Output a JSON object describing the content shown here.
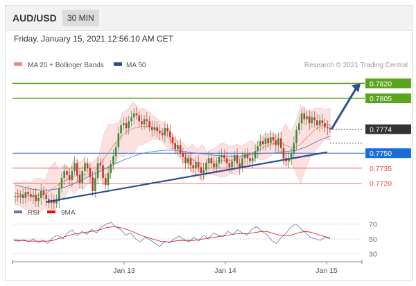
{
  "header": {
    "symbol": "AUD/USD",
    "timeframe": "30 MIN"
  },
  "datetime": "Friday, January 15, 2021 12:56:10 AM CET",
  "legend": {
    "ma20_label": "MA 20 + Bollinger Bands",
    "ma50_label": "MA 50",
    "rsi_label": "RSI",
    "ma9_label": "9MA"
  },
  "credit": "Research © 2021 Trading Central",
  "colors": {
    "resistance": "#5aa51e",
    "current": "#333333",
    "pivot": "#1a6ed8",
    "support": "#e34a4a",
    "trend": "#2d4f8e",
    "bollinger_fill": "#fde1e1",
    "ma20": "#f08888",
    "ma50": "#5b7bb5",
    "candle_up": "#3c8c3c",
    "candle_down": "#c0392b"
  },
  "chart_data": [
    {
      "type": "line",
      "title": "",
      "x_labels": [
        "Jan 13",
        "Jan 14",
        "Jan 15"
      ],
      "ylim": [
        0.7705,
        0.783
      ],
      "levels": [
        {
          "value": 0.782,
          "label": "0.7820",
          "role": "resistance"
        },
        {
          "value": 0.7805,
          "label": "0.7805",
          "role": "resistance"
        },
        {
          "value": 0.7774,
          "label": "0.7774",
          "role": "current"
        },
        {
          "value": 0.775,
          "label": "0.7750",
          "role": "pivot"
        },
        {
          "value": 0.7735,
          "label": "0.7735",
          "role": "support"
        },
        {
          "value": 0.772,
          "label": "0.7720",
          "role": "support"
        }
      ],
      "series": [
        {
          "name": "Price",
          "values": [
            0.7707,
            0.7706,
            0.7708,
            0.7705,
            0.7711,
            0.7709,
            0.7706,
            0.7708,
            0.7702,
            0.7705,
            0.7712,
            0.7708,
            0.7704,
            0.77,
            0.7703,
            0.77,
            0.7702,
            0.7715,
            0.7725,
            0.7732,
            0.7728,
            0.7723,
            0.7732,
            0.774,
            0.7728,
            0.772,
            0.7732,
            0.774,
            0.7735,
            0.7726,
            0.7712,
            0.7725,
            0.774,
            0.7738,
            0.7725,
            0.7718,
            0.773,
            0.7739,
            0.7747,
            0.7756,
            0.777,
            0.7778,
            0.778,
            0.7775,
            0.7782,
            0.7786,
            0.779,
            0.7788,
            0.7782,
            0.7779,
            0.7784,
            0.7782,
            0.7776,
            0.7773,
            0.7776,
            0.7772,
            0.777,
            0.7768,
            0.7775,
            0.7772,
            0.7766,
            0.776,
            0.7754,
            0.7758,
            0.775,
            0.7746,
            0.774,
            0.7745,
            0.7738,
            0.7735,
            0.7741,
            0.7736,
            0.773,
            0.7733,
            0.774,
            0.7745,
            0.774,
            0.7736,
            0.774,
            0.7746,
            0.7748,
            0.7745,
            0.774,
            0.7736,
            0.7742,
            0.7748,
            0.774,
            0.7735,
            0.7745,
            0.7749,
            0.7745,
            0.7742,
            0.7745,
            0.7752,
            0.7757,
            0.7762,
            0.7759,
            0.7765,
            0.776,
            0.7766,
            0.7763,
            0.7758,
            0.7765,
            0.7755,
            0.7745,
            0.7742,
            0.7744,
            0.775,
            0.776,
            0.7773,
            0.778,
            0.779,
            0.7784,
            0.7787,
            0.778,
            0.7786,
            0.7783,
            0.7778,
            0.7783,
            0.778,
            0.7776,
            0.7775,
            0.7774
          ]
        },
        {
          "name": "MA 20",
          "values": [
            0.771,
            0.7709,
            0.7708,
            0.7707,
            0.7707,
            0.7708,
            0.7709,
            0.7712,
            0.7716,
            0.7719,
            0.7722,
            0.7725,
            0.7727,
            0.7728,
            0.7729,
            0.7729,
            0.7731,
            0.7737,
            0.7744,
            0.7751,
            0.7758,
            0.7764,
            0.7769,
            0.7773,
            0.7775,
            0.7776,
            0.7777,
            0.7777,
            0.7776,
            0.7774,
            0.7771,
            0.7766,
            0.7761,
            0.7756,
            0.7751,
            0.7747,
            0.7744,
            0.7741,
            0.774,
            0.774,
            0.7741,
            0.7742,
            0.7743,
            0.7743,
            0.7743,
            0.7744,
            0.7746,
            0.7748,
            0.775,
            0.7752,
            0.7755,
            0.7757,
            0.7759,
            0.776,
            0.776,
            0.7758,
            0.7756,
            0.7756,
            0.7759,
            0.7764,
            0.7769,
            0.7774,
            0.7777,
            0.7779,
            0.7779
          ]
        },
        {
          "name": "MA 50",
          "values": [
            0.7718,
            0.7716,
            0.7714,
            0.7713,
            0.7713,
            0.7714,
            0.7716,
            0.7719,
            0.7723,
            0.7727,
            0.7731,
            0.7735,
            0.7739,
            0.7743,
            0.7746,
            0.7749,
            0.7751,
            0.7752,
            0.7753,
            0.7753,
            0.7752,
            0.7751,
            0.775,
            0.7749,
            0.7748,
            0.7747,
            0.7747,
            0.7747,
            0.7748,
            0.7749,
            0.775,
            0.775,
            0.7751,
            0.7752,
            0.7753,
            0.7756,
            0.776,
            0.7764,
            0.7767
          ]
        }
      ],
      "trendline": {
        "from": 0.7701,
        "to": 0.7751
      },
      "projection": {
        "from": 0.7774,
        "to": 0.782
      }
    },
    {
      "type": "line",
      "title": "",
      "y_ticks": [
        70,
        50,
        30
      ],
      "ylim": [
        25,
        75
      ],
      "series": [
        {
          "name": "RSI",
          "values": [
            48,
            47,
            49,
            46,
            50,
            45,
            48,
            44,
            52,
            55,
            50,
            58,
            62,
            54,
            60,
            56,
            63,
            58,
            66,
            70,
            72,
            66,
            62,
            55,
            58,
            50,
            46,
            52,
            49,
            44,
            40,
            47,
            45,
            50,
            54,
            49,
            46,
            52,
            47,
            55,
            50,
            58,
            55,
            53,
            60,
            56,
            62,
            58,
            55,
            64,
            66,
            60,
            56,
            48,
            44,
            52,
            58,
            66,
            70,
            64,
            58,
            52,
            50,
            48,
            52,
            50
          ]
        },
        {
          "name": "9MA",
          "values": [
            49,
            48,
            48,
            47,
            47,
            47,
            47,
            47,
            48,
            50,
            52,
            54,
            56,
            57,
            58,
            59,
            60,
            61,
            63,
            65,
            66,
            66,
            65,
            63,
            61,
            58,
            55,
            53,
            51,
            49,
            47,
            46,
            46,
            47,
            48,
            48,
            48,
            48,
            49,
            50,
            51,
            52,
            53,
            54,
            55,
            56,
            57,
            57,
            57,
            58,
            59,
            60,
            60,
            58,
            56,
            55,
            54,
            55,
            57,
            59,
            60,
            59,
            57,
            55,
            53,
            52
          ]
        }
      ]
    }
  ]
}
